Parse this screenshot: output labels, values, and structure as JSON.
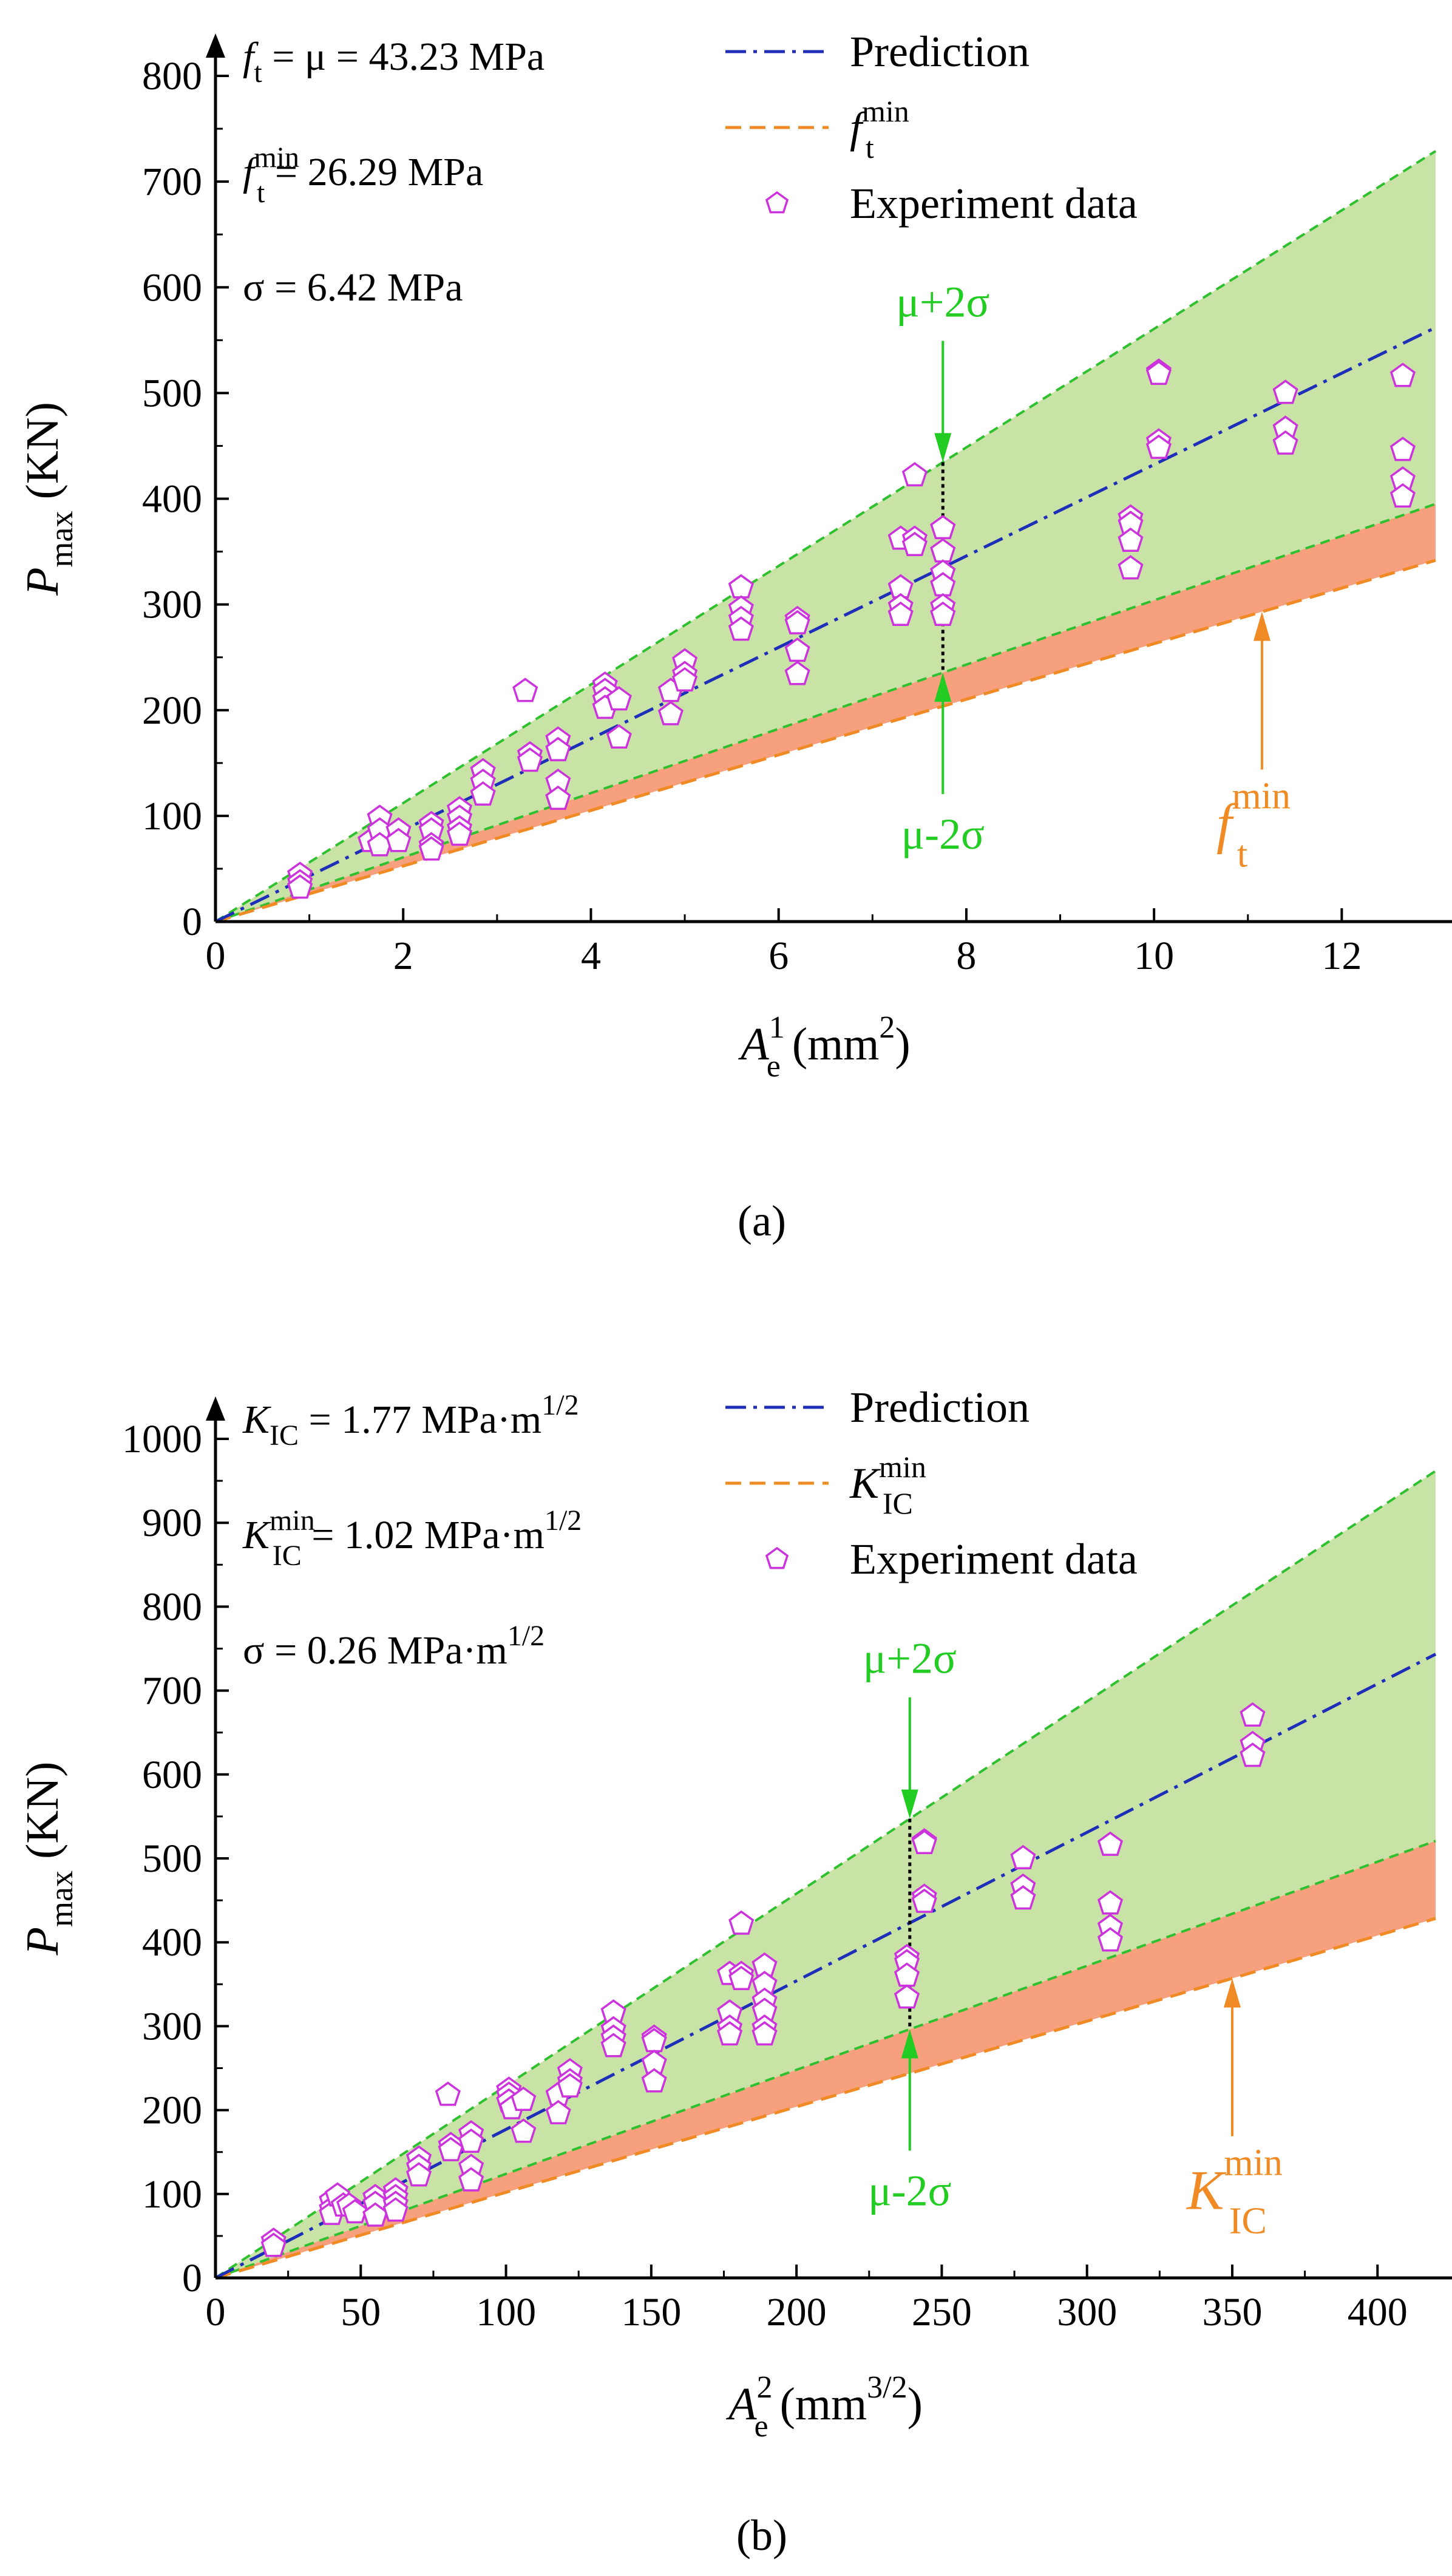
{
  "chart_data": [
    {
      "type": "scatter",
      "panel_label": "(a)",
      "xlabel": {
        "main": "A",
        "sub": "e",
        "sup": "1",
        "unit_pre": " (mm",
        "unit_sup": "2",
        "unit_post": ")"
      },
      "ylabel": {
        "main": "P",
        "sub": "max",
        "unit": " (KN)"
      },
      "xlim": [
        0,
        13
      ],
      "ylim": [
        0,
        800
      ],
      "xticks": [
        0,
        2,
        4,
        6,
        8,
        10,
        12
      ],
      "yticks": [
        0,
        100,
        200,
        300,
        400,
        500,
        600,
        700,
        800
      ],
      "lines": {
        "prediction_slope": 43.23,
        "upper_slope": 56.07,
        "lower_slope": 30.39,
        "min_slope": 26.29
      },
      "stats": [
        {
          "lhs": "f",
          "lhs_sub": "t",
          "lhs_sup": "",
          "rhs": " = μ = 43.23 MPa"
        },
        {
          "lhs": "f",
          "lhs_sub": "t",
          "lhs_sup": "min",
          "rhs": " = 26.29 MPa"
        },
        {
          "lhs": "",
          "lhs_sub": "",
          "lhs_sup": "",
          "rhs": "σ = 6.42 MPa"
        }
      ],
      "legend": [
        {
          "label": "Prediction",
          "sup": "",
          "sub": "",
          "style": "dashdot"
        },
        {
          "label": "f",
          "sup": "min",
          "sub": "t",
          "style": "dashed"
        },
        {
          "label": "Experiment data",
          "sup": "",
          "sub": "",
          "style": "marker"
        }
      ],
      "annotations": {
        "upper": "μ+2σ",
        "lower": "μ-2σ",
        "min_label": "f",
        "min_sup": "min",
        "min_sub": "t",
        "marker_x": 7.75,
        "min_arrow_x": 11.15
      },
      "points": [
        [
          0.9,
          44
        ],
        [
          0.9,
          37
        ],
        [
          0.9,
          32
        ],
        [
          1.65,
          76
        ],
        [
          1.75,
          98
        ],
        [
          1.75,
          86
        ],
        [
          1.75,
          72
        ],
        [
          1.95,
          86
        ],
        [
          1.95,
          76
        ],
        [
          2.3,
          92
        ],
        [
          2.3,
          86
        ],
        [
          2.3,
          72
        ],
        [
          2.3,
          68
        ],
        [
          2.6,
          106
        ],
        [
          2.6,
          98
        ],
        [
          2.6,
          88
        ],
        [
          2.6,
          82
        ],
        [
          2.85,
          142
        ],
        [
          2.85,
          132
        ],
        [
          2.85,
          120
        ],
        [
          3.3,
          218
        ],
        [
          3.35,
          158
        ],
        [
          3.35,
          152
        ],
        [
          3.65,
          172
        ],
        [
          3.65,
          162
        ],
        [
          3.65,
          132
        ],
        [
          3.65,
          116
        ],
        [
          4.15,
          224
        ],
        [
          4.15,
          218
        ],
        [
          4.15,
          210
        ],
        [
          4.15,
          202
        ],
        [
          4.3,
          210
        ],
        [
          4.3,
          174
        ],
        [
          4.85,
          218
        ],
        [
          4.85,
          196
        ],
        [
          5.0,
          246
        ],
        [
          5.0,
          234
        ],
        [
          5.0,
          228
        ],
        [
          5.6,
          316
        ],
        [
          5.6,
          296
        ],
        [
          5.6,
          286
        ],
        [
          5.6,
          276
        ],
        [
          6.2,
          286
        ],
        [
          6.2,
          282
        ],
        [
          6.2,
          256
        ],
        [
          6.2,
          234
        ],
        [
          7.3,
          362
        ],
        [
          7.3,
          316
        ],
        [
          7.3,
          298
        ],
        [
          7.3,
          290
        ],
        [
          7.45,
          422
        ],
        [
          7.45,
          362
        ],
        [
          7.45,
          356
        ],
        [
          7.75,
          372
        ],
        [
          7.75,
          350
        ],
        [
          7.75,
          330
        ],
        [
          7.75,
          318
        ],
        [
          7.75,
          298
        ],
        [
          7.75,
          290
        ],
        [
          9.75,
          382
        ],
        [
          9.75,
          376
        ],
        [
          9.75,
          360
        ],
        [
          9.75,
          334
        ],
        [
          10.05,
          520
        ],
        [
          10.05,
          518
        ],
        [
          10.05,
          454
        ],
        [
          10.05,
          448
        ],
        [
          11.4,
          500
        ],
        [
          11.4,
          466
        ],
        [
          11.4,
          452
        ],
        [
          12.65,
          516
        ],
        [
          12.65,
          446
        ],
        [
          12.65,
          418
        ],
        [
          12.65,
          402
        ]
      ]
    },
    {
      "type": "scatter",
      "panel_label": "(b)",
      "xlabel": {
        "main": "A",
        "sub": "e",
        "sup": "2",
        "unit_pre": " (mm",
        "unit_sup": "3/2",
        "unit_post": ")"
      },
      "ylabel": {
        "main": "P",
        "sub": "max",
        "unit": " (KN)"
      },
      "xlim": [
        0,
        420
      ],
      "ylim": [
        0,
        1000
      ],
      "xticks": [
        0,
        50,
        100,
        150,
        200,
        250,
        300,
        350,
        400
      ],
      "yticks": [
        0,
        100,
        200,
        300,
        400,
        500,
        600,
        700,
        800,
        900,
        1000
      ],
      "lines": {
        "prediction_slope": 1.77,
        "upper_slope": 2.29,
        "lower_slope": 1.24,
        "min_slope": 1.02
      },
      "stats": [
        {
          "lhs": "K",
          "lhs_sub": "IC",
          "lhs_sup": "",
          "rhs": " = 1.77 MPa·m",
          "rhs_sup": "1/2"
        },
        {
          "lhs": "K",
          "lhs_sub": "IC",
          "lhs_sup": "min",
          "rhs": "  = 1.02 MPa·m",
          "rhs_sup": "1/2"
        },
        {
          "lhs": "",
          "lhs_sub": "",
          "lhs_sup": "",
          "rhs": "σ = 0.26 MPa·m",
          "rhs_sup": "1/2"
        }
      ],
      "legend": [
        {
          "label": "Prediction",
          "sup": "",
          "sub": "",
          "style": "dashdot"
        },
        {
          "label": "K",
          "sup": "min",
          "sub": "IC",
          "style": "dashed"
        },
        {
          "label": "Experiment data",
          "sup": "",
          "sub": "",
          "style": "marker"
        }
      ],
      "annotations": {
        "upper": "μ+2σ",
        "lower": "μ-2σ",
        "min_label": "K",
        "min_sup": "min",
        "min_sub": "IC",
        "marker_x": 239,
        "min_arrow_x": 350
      },
      "points": [
        [
          20,
          44
        ],
        [
          20,
          38
        ],
        [
          40,
          92
        ],
        [
          40,
          82
        ],
        [
          40,
          76
        ],
        [
          42,
          98
        ],
        [
          44,
          86
        ],
        [
          46,
          86
        ],
        [
          48,
          78
        ],
        [
          55,
          96
        ],
        [
          55,
          88
        ],
        [
          55,
          74
        ],
        [
          62,
          104
        ],
        [
          62,
          96
        ],
        [
          62,
          88
        ],
        [
          62,
          80
        ],
        [
          70,
          142
        ],
        [
          70,
          132
        ],
        [
          70,
          122
        ],
        [
          80,
          218
        ],
        [
          81,
          158
        ],
        [
          81,
          152
        ],
        [
          88,
          172
        ],
        [
          88,
          162
        ],
        [
          88,
          132
        ],
        [
          88,
          116
        ],
        [
          101,
          224
        ],
        [
          101,
          218
        ],
        [
          101,
          210
        ],
        [
          102,
          202
        ],
        [
          106,
          212
        ],
        [
          106,
          174
        ],
        [
          118,
          218
        ],
        [
          118,
          196
        ],
        [
          122,
          246
        ],
        [
          122,
          234
        ],
        [
          122,
          228
        ],
        [
          137,
          316
        ],
        [
          137,
          296
        ],
        [
          137,
          286
        ],
        [
          137,
          276
        ],
        [
          151,
          286
        ],
        [
          151,
          282
        ],
        [
          151,
          256
        ],
        [
          151,
          234
        ],
        [
          177,
          362
        ],
        [
          177,
          316
        ],
        [
          177,
          298
        ],
        [
          177,
          290
        ],
        [
          181,
          422
        ],
        [
          181,
          362
        ],
        [
          181,
          356
        ],
        [
          189,
          372
        ],
        [
          189,
          350
        ],
        [
          189,
          330
        ],
        [
          189,
          318
        ],
        [
          189,
          298
        ],
        [
          189,
          290
        ],
        [
          238,
          382
        ],
        [
          238,
          376
        ],
        [
          238,
          360
        ],
        [
          238,
          334
        ],
        [
          244,
          520
        ],
        [
          244,
          518
        ],
        [
          244,
          454
        ],
        [
          244,
          448
        ],
        [
          278,
          500
        ],
        [
          278,
          466
        ],
        [
          278,
          452
        ],
        [
          308,
          516
        ],
        [
          308,
          446
        ],
        [
          308,
          418
        ],
        [
          308,
          402
        ],
        [
          357,
          670
        ],
        [
          357,
          636
        ],
        [
          357,
          622
        ]
      ]
    }
  ]
}
